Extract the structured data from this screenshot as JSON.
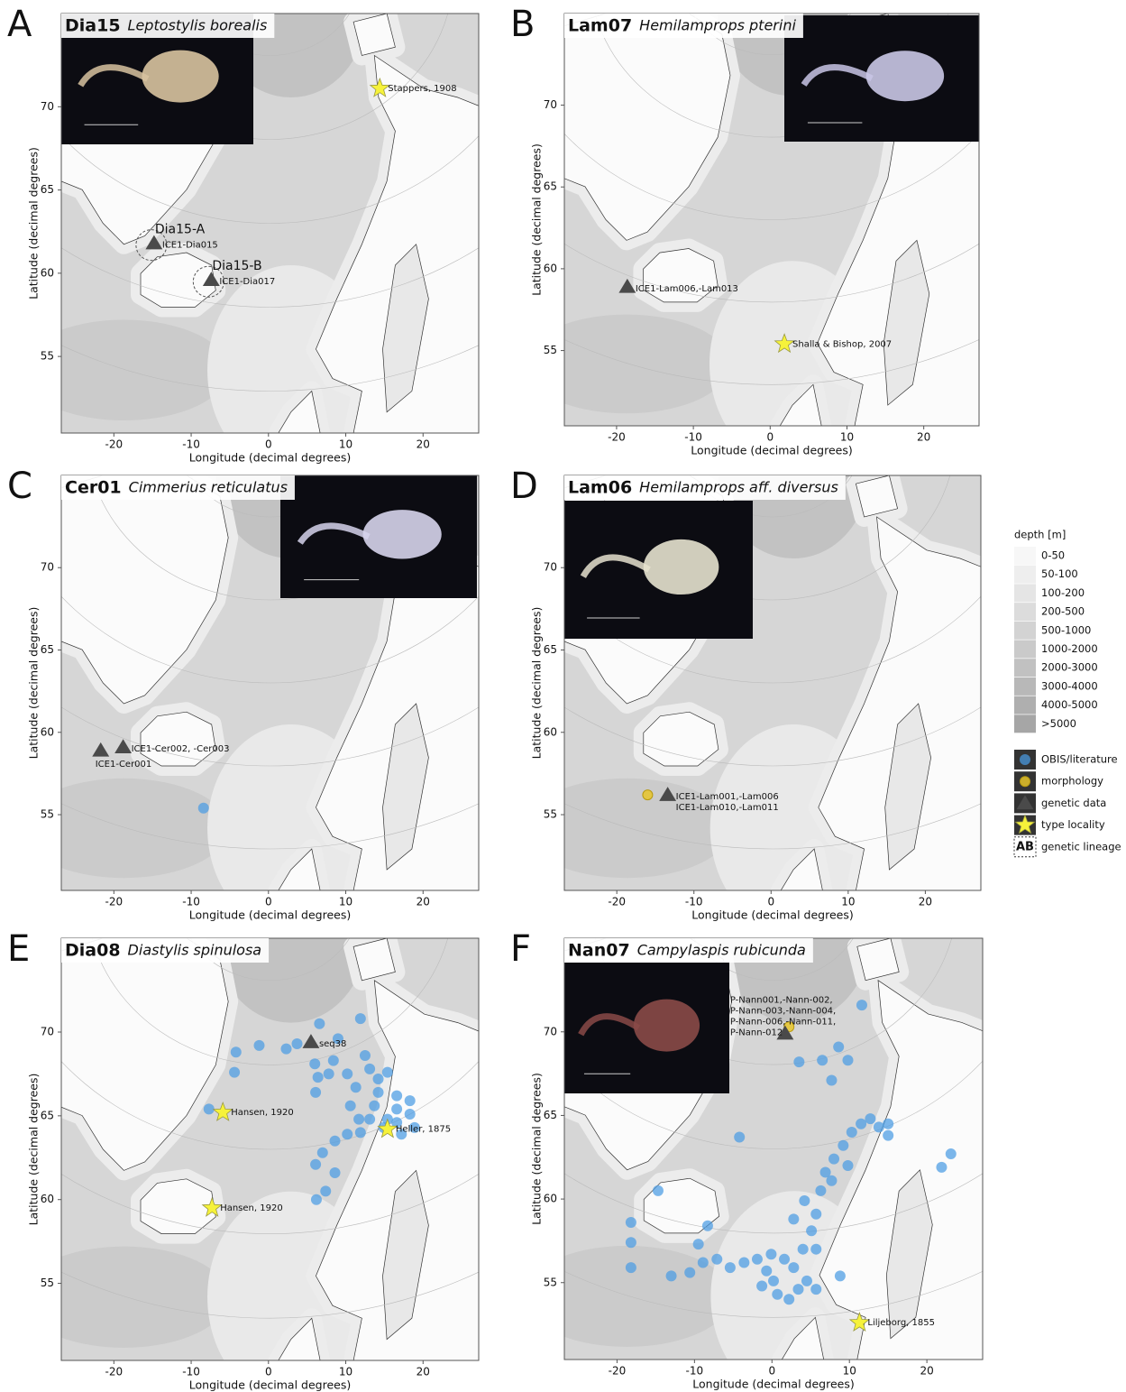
{
  "axes": {
    "x_label": "Longitude (decimal degrees)",
    "y_label": "Latitude (decimal degrees)",
    "xlim": [
      -26.8,
      27.2
    ],
    "ylim": [
      50.4,
      75.6
    ],
    "xticks": [
      -20,
      -10,
      0,
      10,
      20
    ],
    "yticks": [
      55,
      60,
      65,
      70
    ]
  },
  "panels": [
    {
      "letter": "A",
      "code": "Dia15",
      "species": "Leptostylis borealis",
      "points": [
        {
          "kind": "type",
          "x": 14.4,
          "y": 71.1,
          "labels": [
            "Stappers, 1908"
          ]
        },
        {
          "kind": "genetic",
          "x": -14.8,
          "y": 61.8,
          "labels": [
            "ICE1-Dia015"
          ],
          "lineage": "Dia15-A"
        },
        {
          "kind": "genetic",
          "x": -7.4,
          "y": 59.6,
          "labels": [
            "ICE1-Dia017"
          ],
          "lineage": "Dia15-B"
        }
      ],
      "obis": []
    },
    {
      "letter": "B",
      "code": "Lam07",
      "species": "Hemilamprops pterini",
      "points": [
        {
          "kind": "genetic",
          "x": -18.6,
          "y": 58.9,
          "labels": [
            "ICE1-Lam006,-Lam013"
          ]
        },
        {
          "kind": "type",
          "x": 1.85,
          "y": 55.4,
          "labels": [
            "Shalla & Bishop, 2007"
          ]
        }
      ],
      "obis": []
    },
    {
      "letter": "C",
      "code": "Cer01",
      "species": "Cimmerius reticulatus",
      "points": [
        {
          "kind": "genetic",
          "x": -21.7,
          "y": 58.9,
          "labels": [
            "ICE1-Cer001"
          ]
        },
        {
          "kind": "genetic",
          "x": -18.8,
          "y": 59.1,
          "labels": [
            "ICE1-Cer002, -Cer003"
          ]
        }
      ],
      "obis": [
        [
          -8.4,
          55.4
        ]
      ]
    },
    {
      "letter": "D",
      "code": "Lam06",
      "species": "Hemilamprops aff. diversus",
      "points": [
        {
          "kind": "morphology",
          "x": -16.0,
          "y": 56.2,
          "labels": []
        },
        {
          "kind": "genetic",
          "x": -13.4,
          "y": 56.2,
          "labels": [
            "ICE1-Lam001,-Lam006",
            "ICE1-Lam010,-Lam011"
          ]
        }
      ],
      "obis": []
    },
    {
      "letter": "E",
      "code": "Dia08",
      "species": "Diastylis spinulosa",
      "points": [
        {
          "kind": "genetic",
          "x": 5.5,
          "y": 69.4,
          "labels": [
            "seq38"
          ]
        },
        {
          "kind": "type",
          "x": -5.9,
          "y": 65.2,
          "labels": [
            "Hansen, 1920"
          ]
        },
        {
          "kind": "type",
          "x": 15.4,
          "y": 64.2,
          "labels": [
            "Heller, 1875"
          ]
        },
        {
          "kind": "type",
          "x": -7.3,
          "y": 59.5,
          "labels": [
            "Hansen, 1920"
          ]
        }
      ],
      "obis": [
        [
          -7.7,
          65.4
        ],
        [
          -4.4,
          67.6
        ],
        [
          -4.2,
          68.8
        ],
        [
          -1.2,
          69.2
        ],
        [
          2.3,
          69.0
        ],
        [
          3.7,
          69.3
        ],
        [
          6.6,
          70.5
        ],
        [
          9.0,
          69.6
        ],
        [
          11.9,
          70.8
        ],
        [
          6.0,
          68.1
        ],
        [
          6.4,
          67.3
        ],
        [
          6.1,
          66.4
        ],
        [
          8.4,
          68.3
        ],
        [
          10.2,
          67.5
        ],
        [
          11.3,
          66.7
        ],
        [
          13.1,
          67.8
        ],
        [
          15.4,
          67.6
        ],
        [
          14.2,
          66.4
        ],
        [
          16.6,
          66.2
        ],
        [
          18.3,
          65.9
        ],
        [
          13.7,
          65.6
        ],
        [
          13.1,
          64.8
        ],
        [
          14.9,
          64.3
        ],
        [
          17.2,
          63.9
        ],
        [
          18.9,
          64.3
        ],
        [
          18.3,
          65.1
        ],
        [
          11.9,
          64.0
        ],
        [
          10.2,
          63.9
        ],
        [
          8.6,
          63.5
        ],
        [
          7.0,
          62.8
        ],
        [
          6.1,
          62.1
        ],
        [
          8.6,
          61.6
        ],
        [
          7.4,
          60.5
        ],
        [
          6.2,
          60.0
        ],
        [
          16.6,
          65.4
        ],
        [
          15.4,
          64.8
        ],
        [
          11.7,
          64.8
        ],
        [
          10.6,
          65.6
        ],
        [
          14.2,
          67.2
        ],
        [
          12.5,
          68.6
        ],
        [
          7.8,
          67.5
        ],
        [
          16.6,
          64.6
        ]
      ]
    },
    {
      "letter": "F",
      "code": "Nan07",
      "species": "Campylaspis rubicunda",
      "points": [
        {
          "kind": "morphology",
          "x": 2.2,
          "y": 70.3,
          "labels": []
        },
        {
          "kind": "genetic",
          "x": 1.7,
          "y": 69.9,
          "labels": [
            "P-Nann001,-Nann-002,",
            "P-Nann-003,-Nann-004,",
            "P-Nann-006,-Nann-011,",
            "P-Nann-012"
          ]
        },
        {
          "kind": "type",
          "x": 11.3,
          "y": 52.6,
          "labels": [
            "Liljeborg, 1855"
          ]
        }
      ],
      "obis": [
        [
          11.6,
          71.6
        ],
        [
          3.5,
          68.2
        ],
        [
          6.5,
          68.3
        ],
        [
          8.6,
          69.1
        ],
        [
          9.8,
          68.3
        ],
        [
          7.7,
          67.1
        ],
        [
          -4.2,
          63.7
        ],
        [
          -14.7,
          60.5
        ],
        [
          -18.2,
          58.6
        ],
        [
          -18.2,
          57.4
        ],
        [
          -18.2,
          55.9
        ],
        [
          -13.0,
          55.4
        ],
        [
          -10.6,
          55.6
        ],
        [
          -8.9,
          56.2
        ],
        [
          -7.1,
          56.4
        ],
        [
          -5.4,
          55.9
        ],
        [
          -3.6,
          56.2
        ],
        [
          -1.9,
          56.4
        ],
        [
          -0.1,
          56.7
        ],
        [
          1.6,
          56.4
        ],
        [
          0.2,
          55.1
        ],
        [
          0.7,
          54.3
        ],
        [
          2.2,
          54.0
        ],
        [
          3.4,
          54.6
        ],
        [
          4.5,
          55.1
        ],
        [
          5.7,
          54.6
        ],
        [
          2.8,
          55.9
        ],
        [
          4.0,
          57.0
        ],
        [
          5.1,
          58.1
        ],
        [
          5.7,
          59.1
        ],
        [
          4.2,
          59.9
        ],
        [
          2.8,
          58.8
        ],
        [
          6.3,
          60.5
        ],
        [
          6.9,
          61.6
        ],
        [
          8.0,
          62.4
        ],
        [
          9.2,
          63.2
        ],
        [
          10.3,
          64.0
        ],
        [
          11.5,
          64.5
        ],
        [
          12.7,
          64.8
        ],
        [
          13.8,
          64.3
        ],
        [
          15.0,
          64.5
        ],
        [
          15.0,
          63.8
        ],
        [
          23.1,
          62.7
        ],
        [
          21.9,
          61.9
        ],
        [
          9.8,
          62.0
        ],
        [
          7.7,
          61.1
        ],
        [
          5.7,
          57.0
        ],
        [
          8.8,
          55.4
        ],
        [
          -8.3,
          58.4
        ],
        [
          -9.5,
          57.3
        ],
        [
          -0.7,
          55.7
        ],
        [
          -1.3,
          54.8
        ]
      ]
    }
  ],
  "legend": {
    "depth_title": "depth [m]",
    "depth_classes": [
      "0-50",
      "50-100",
      "100-200",
      "200-500",
      "500-1000",
      "1000-2000",
      "2000-3000",
      "3000-4000",
      "4000-5000",
      ">5000"
    ],
    "symbols": [
      {
        "kind": "obis",
        "label": "OBIS/literature"
      },
      {
        "kind": "morphology",
        "label": "morphology"
      },
      {
        "kind": "genetic",
        "label": "genetic data"
      },
      {
        "kind": "type",
        "label": "type locality"
      },
      {
        "kind": "lineage",
        "key": "AB",
        "label": "genetic lineage"
      }
    ]
  }
}
